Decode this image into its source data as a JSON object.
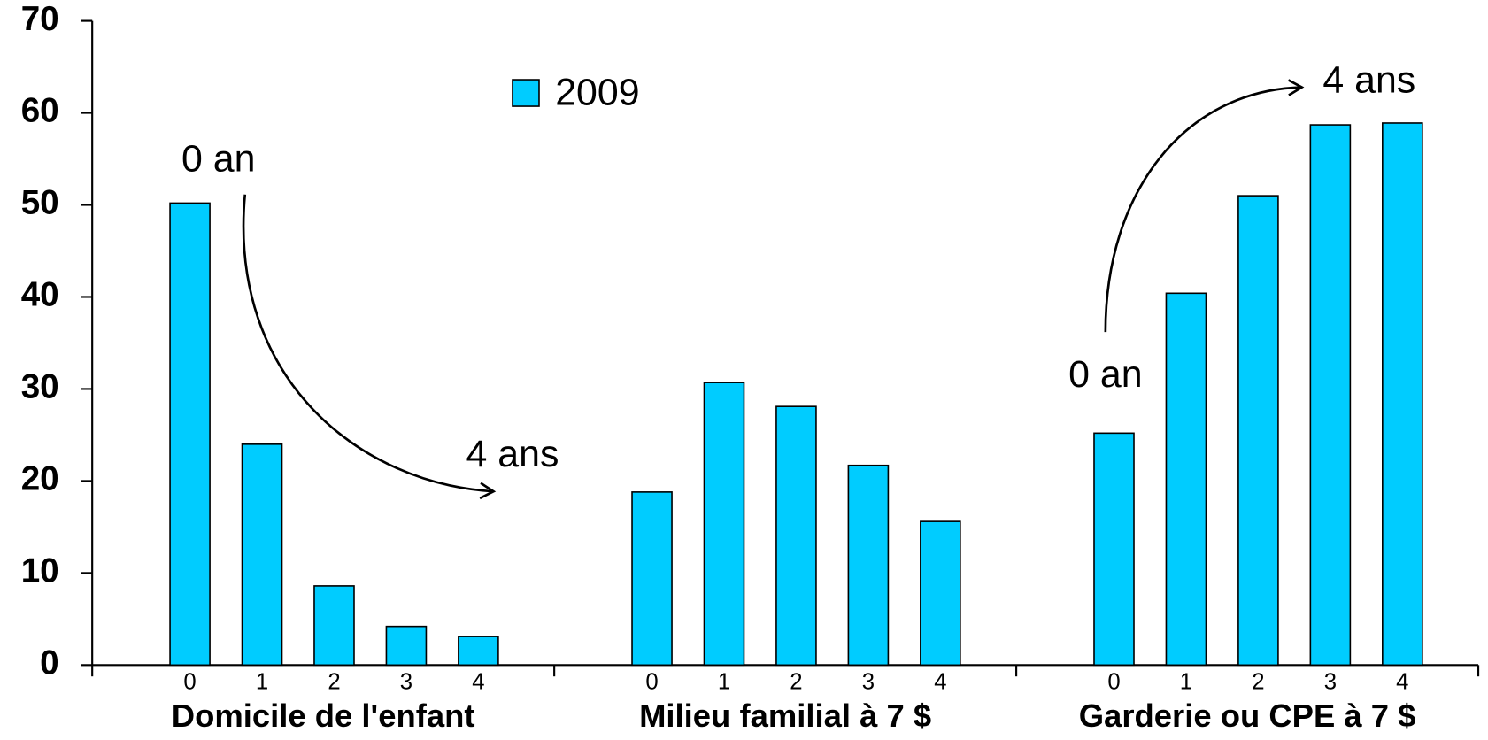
{
  "chart_data": {
    "type": "grouped-bar",
    "categories": [
      "Domicile de l'enfant",
      "Milieu familial à 7 $",
      "Garderie ou CPE à 7 $"
    ],
    "subcategories": [
      "0",
      "1",
      "2",
      "3",
      "4"
    ],
    "series": [
      {
        "name": "2009",
        "color": "#00ccff",
        "values": [
          [
            50.2,
            24,
            8.6,
            4.2,
            3.1
          ],
          [
            18.8,
            30.7,
            28.1,
            21.7,
            15.6
          ],
          [
            25.2,
            40.4,
            51,
            58.7,
            58.9
          ]
        ]
      }
    ],
    "ylim": [
      0,
      70
    ],
    "yticks": [
      0,
      10,
      20,
      30,
      40,
      50,
      60,
      70
    ],
    "annotations": [
      "0 an",
      "4 ans",
      "0 an",
      "4 ans"
    ]
  }
}
